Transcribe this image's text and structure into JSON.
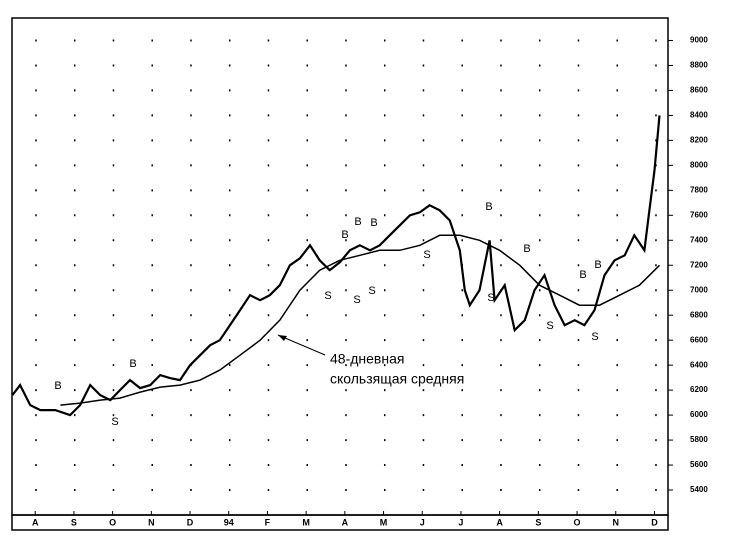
{
  "chart_data": {
    "type": "line",
    "xlim": [
      -0.6,
      16.35
    ],
    "ylim": [
      5200,
      9180
    ],
    "xticks": [
      {
        "value": 0,
        "label": "A"
      },
      {
        "value": 1,
        "label": "S"
      },
      {
        "value": 2,
        "label": "O"
      },
      {
        "value": 3,
        "label": "N"
      },
      {
        "value": 4,
        "label": "D"
      },
      {
        "value": 5,
        "label": "94"
      },
      {
        "value": 6,
        "label": "F"
      },
      {
        "value": 7,
        "label": "M"
      },
      {
        "value": 8,
        "label": "A"
      },
      {
        "value": 9,
        "label": "M"
      },
      {
        "value": 10,
        "label": "J"
      },
      {
        "value": 11,
        "label": "J"
      },
      {
        "value": 12,
        "label": "A"
      },
      {
        "value": 13,
        "label": "S"
      },
      {
        "value": 14,
        "label": "O"
      },
      {
        "value": 15,
        "label": "N"
      },
      {
        "value": 16,
        "label": "D"
      }
    ],
    "yticks": [
      9000,
      8800,
      8600,
      8400,
      8200,
      8000,
      7800,
      7600,
      7400,
      7200,
      7000,
      6800,
      6600,
      6400,
      6200,
      6000,
      5800,
      5600,
      5400
    ],
    "grid": true,
    "series": [
      {
        "color": "#000000",
        "x": [
          -0.59,
          -0.39,
          -0.13,
          0.13,
          0.52,
          0.9,
          1.16,
          1.42,
          1.68,
          1.94,
          2.19,
          2.45,
          2.71,
          2.97,
          3.23,
          3.48,
          3.74,
          4.0,
          4.26,
          4.52,
          4.77,
          5.03,
          5.29,
          5.55,
          5.81,
          6.06,
          6.32,
          6.58,
          6.84,
          7.1,
          7.35,
          7.61,
          7.87,
          8.13,
          8.39,
          8.65,
          8.9,
          9.16,
          9.42,
          9.68,
          9.94,
          10.19,
          10.45,
          10.71,
          10.97,
          11.1,
          11.23,
          11.48,
          11.74,
          11.87,
          12.13,
          12.39,
          12.65,
          12.9,
          13.16,
          13.42,
          13.68,
          13.94,
          14.19,
          14.45,
          14.71,
          14.97,
          15.23,
          15.48,
          15.74,
          15.87,
          16.0,
          16.13
        ],
        "values": [
          6160,
          6240,
          6080,
          6040,
          6040,
          6000,
          6080,
          6240,
          6160,
          6120,
          6200,
          6280,
          6216,
          6240,
          6320,
          6296,
          6280,
          6400,
          6480,
          6560,
          6600,
          6720,
          6840,
          6960,
          6920,
          6960,
          7040,
          7200,
          7256,
          7360,
          7240,
          7160,
          7224,
          7320,
          7360,
          7320,
          7360,
          7440,
          7520,
          7600,
          7624,
          7680,
          7640,
          7560,
          7320,
          7000,
          6880,
          7000,
          7400,
          6920,
          7040,
          6680,
          6760,
          7000,
          7120,
          6880,
          6720,
          6760,
          6720,
          6840,
          7120,
          7240,
          7280,
          7440,
          7320,
          7640,
          7960,
          8400
        ]
      },
      {
        "color": "#000000",
        "x": [
          0.65,
          1.16,
          1.68,
          2.19,
          2.71,
          3.23,
          3.74,
          4.26,
          4.77,
          5.29,
          5.81,
          6.32,
          6.84,
          7.35,
          7.87,
          8.39,
          8.9,
          9.42,
          9.94,
          10.45,
          10.97,
          11.48,
          12.0,
          12.52,
          13.03,
          13.55,
          14.06,
          14.58,
          15.1,
          15.61,
          16.13
        ],
        "values": [
          6080,
          6096,
          6120,
          6136,
          6184,
          6224,
          6240,
          6280,
          6360,
          6480,
          6600,
          6760,
          7000,
          7160,
          7240,
          7280,
          7320,
          7320,
          7360,
          7440,
          7440,
          7400,
          7320,
          7200,
          7040,
          6960,
          6880,
          6880,
          6960,
          7040,
          7200
        ]
      }
    ],
    "signals": [
      "B",
      "S",
      "B",
      "B",
      "B",
      "B",
      "S",
      "S",
      "S",
      "S",
      "B",
      "S",
      "B",
      "S",
      "B",
      "B",
      "S"
    ],
    "annotation": [
      "48-дневная",
      "скользящая средняя"
    ]
  }
}
